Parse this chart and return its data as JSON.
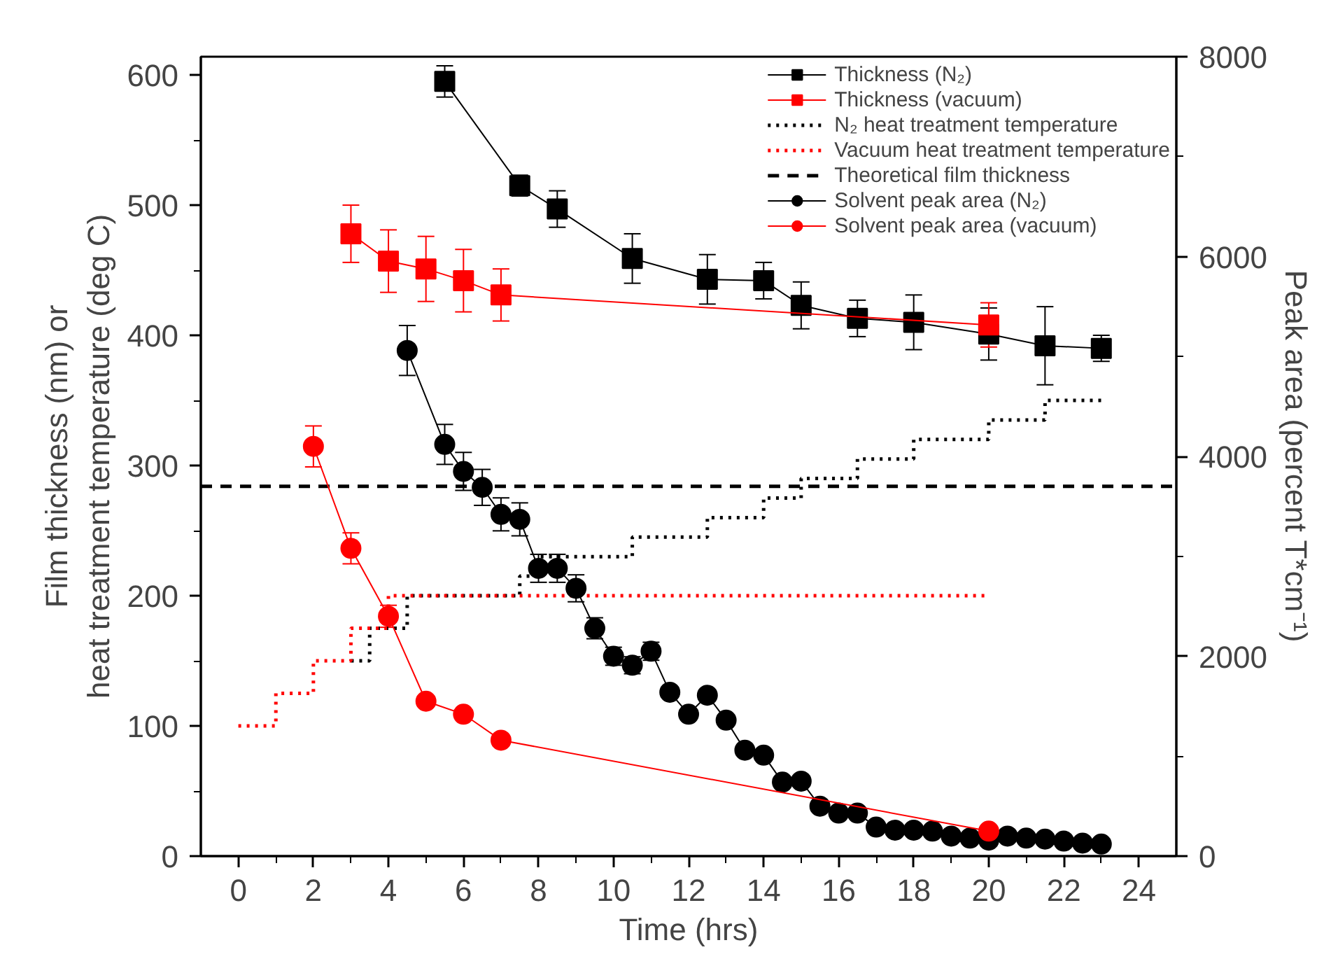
{
  "chart_data": {
    "type": "line",
    "xlabel": "Time (hrs)",
    "ylabel": "Film thickness (nm) or\nheat treatment temperature (deg C)",
    "y2label": "Peak area (percent T*cm⁻¹)",
    "xlim": [
      -1,
      25
    ],
    "xticks": [
      0,
      2,
      4,
      6,
      8,
      10,
      12,
      14,
      16,
      18,
      20,
      22,
      24
    ],
    "ylim": [
      0,
      614
    ],
    "yticks": [
      0,
      100,
      200,
      300,
      400,
      500,
      600
    ],
    "y2lim": [
      0,
      8000
    ],
    "y2ticks": [
      0,
      2000,
      4000,
      6000,
      8000
    ],
    "grid": false,
    "legend": "top right",
    "series": [
      {
        "name": "Thickness (N₂)",
        "marker": "square",
        "color": "#000000",
        "x": [
          5.5,
          7.5,
          8.5,
          10.5,
          12.5,
          14,
          15,
          16.5,
          18,
          20,
          21.5,
          23
        ],
        "values": [
          595,
          515,
          497,
          459,
          443,
          442,
          423,
          413,
          410,
          401,
          392,
          390
        ],
        "errors": [
          12,
          8,
          14,
          19,
          19,
          14,
          18,
          14,
          21,
          20,
          30,
          10
        ]
      },
      {
        "name": "Thickness (vacuum)",
        "marker": "square",
        "color": "#ff0000",
        "x": [
          3,
          4,
          5,
          6,
          7,
          20
        ],
        "values": [
          478,
          457,
          451,
          442,
          431,
          408
        ],
        "errors": [
          22,
          24,
          25,
          24,
          20,
          17
        ]
      },
      {
        "name": "N₂ heat treatment temperature",
        "type": "step",
        "marker": "none",
        "line_style": "dotted",
        "color": "#000000",
        "x": [
          3,
          3.5,
          4.5,
          7.5,
          8,
          10.5,
          12.5,
          14,
          15,
          16.5,
          18,
          20,
          21.5,
          23
        ],
        "values": [
          150,
          175,
          200,
          215,
          230,
          245,
          260,
          275,
          290,
          305,
          320,
          335,
          350,
          350
        ]
      },
      {
        "name": "Vacuum heat treatment temperature",
        "type": "step",
        "marker": "none",
        "line_style": "dotted",
        "color": "#ff0000",
        "x": [
          0,
          1,
          2,
          3,
          4,
          20
        ],
        "values": [
          100,
          125,
          150,
          175,
          200,
          200
        ]
      },
      {
        "name": "Theoretical film thickness",
        "marker": "none",
        "line_style": "dashed",
        "color": "#000000",
        "x": [
          -1,
          25
        ],
        "values": [
          284,
          284
        ]
      },
      {
        "name": "Solvent peak area (N₂)",
        "marker": "circle",
        "axis": "y2",
        "color": "#000000",
        "x": [
          4.5,
          5.5,
          6,
          6.5,
          7,
          7.5,
          8,
          8.5,
          9,
          9.5,
          10,
          10.5,
          11,
          11.5,
          12,
          12.5,
          13,
          13.5,
          14,
          14.5,
          15,
          15.5,
          16,
          16.5,
          17,
          17.5,
          18,
          18.5,
          19,
          19.5,
          20,
          20.5,
          21,
          21.5,
          22,
          22.5,
          23
        ],
        "values": [
          5060,
          4120,
          3850,
          3690,
          3420,
          3370,
          2880,
          2880,
          2680,
          2280,
          2000,
          1910,
          2050,
          1640,
          1420,
          1610,
          1360,
          1060,
          1010,
          740,
          750,
          500,
          430,
          430,
          290,
          260,
          260,
          250,
          200,
          180,
          160,
          200,
          180,
          170,
          150,
          130,
          120
        ],
        "errors": [
          250,
          200,
          190,
          180,
          165,
          165,
          140,
          140,
          135,
          105,
          90,
          85,
          90,
          null,
          null,
          null,
          null,
          null,
          null,
          null,
          null,
          null,
          null,
          null,
          null,
          null,
          null,
          null,
          null,
          null,
          null,
          null,
          null,
          null,
          null,
          null,
          null
        ]
      },
      {
        "name": "Solvent peak area (vacuum)",
        "marker": "circle",
        "axis": "y2",
        "color": "#ff0000",
        "x": [
          2,
          3,
          4,
          5,
          6,
          7,
          20
        ],
        "values": [
          4100,
          3080,
          2400,
          1550,
          1420,
          1160,
          250
        ],
        "errors": [
          205,
          155,
          110,
          null,
          null,
          null,
          null
        ]
      }
    ]
  }
}
